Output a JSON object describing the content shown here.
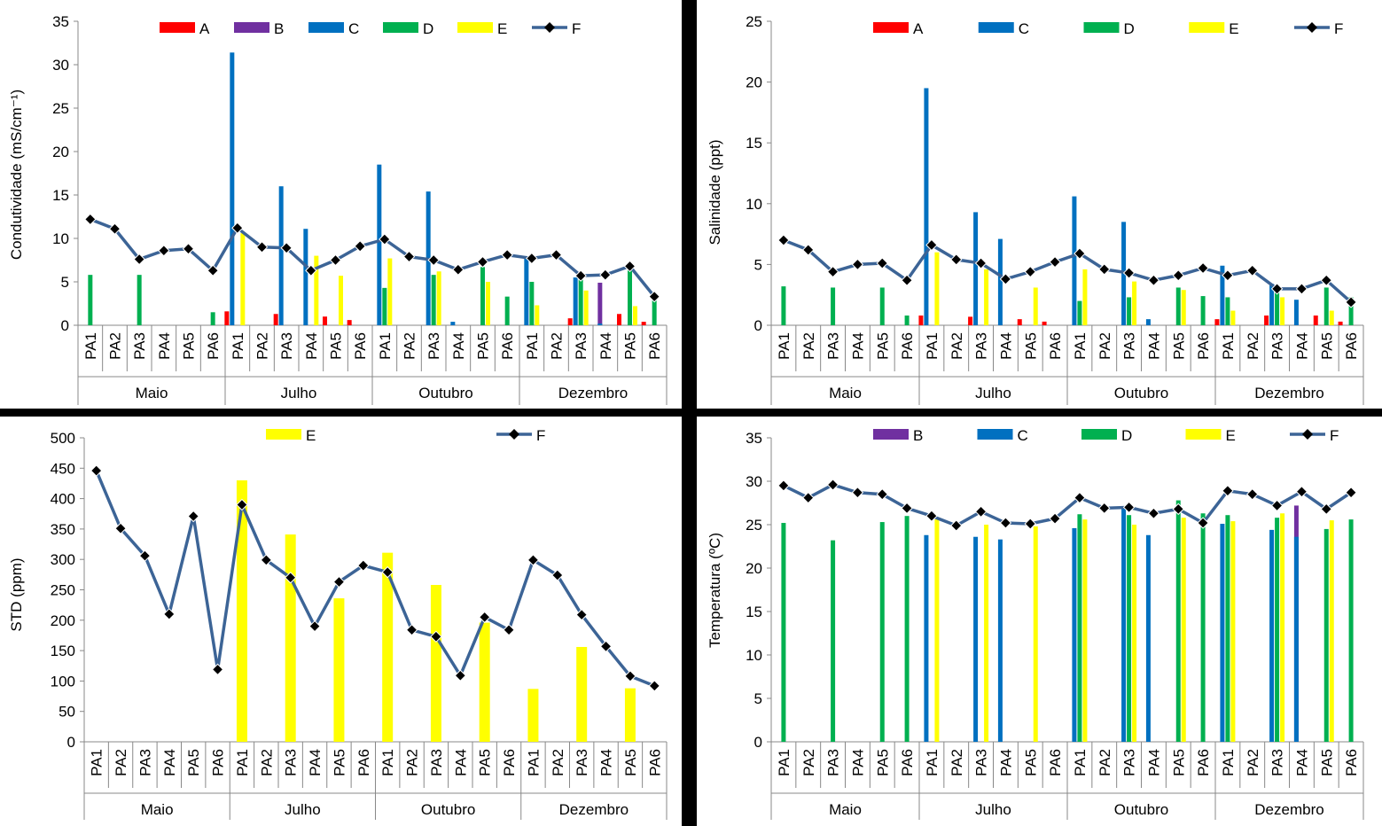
{
  "months": [
    "Maio",
    "Julho",
    "Outubro",
    "Dezembro"
  ],
  "sites": [
    "PA1",
    "PA2",
    "PA3",
    "PA4",
    "PA5",
    "PA6"
  ],
  "legend_names": {
    "A": "A",
    "B": "B",
    "C": "C",
    "D": "D",
    "E": "E",
    "F": "F"
  },
  "colors": {
    "A": "#ff0000",
    "B": "#7030a0",
    "C": "#0070c0",
    "D": "#00b050",
    "E": "#ffff00",
    "F": "#3c6496",
    "marker": "#000000"
  },
  "chart_data": [
    {
      "type": "bar",
      "title": "",
      "ylabel": "Condutividade (mS/cm⁻¹)",
      "xlabel": "",
      "ylim": [
        0,
        35
      ],
      "ytick_step": 5,
      "legend_position": "top",
      "legend": [
        "A",
        "B",
        "C",
        "D",
        "E",
        "F"
      ],
      "series": [
        {
          "name": "A",
          "kind": "bar",
          "values": [
            null,
            null,
            null,
            null,
            null,
            null,
            1.6,
            null,
            1.3,
            null,
            1.0,
            0.6,
            null,
            null,
            null,
            null,
            null,
            null,
            null,
            null,
            0.8,
            null,
            1.3,
            0.4
          ]
        },
        {
          "name": "B",
          "kind": "bar",
          "values": [
            null,
            null,
            null,
            null,
            null,
            null,
            null,
            null,
            null,
            null,
            null,
            null,
            null,
            null,
            null,
            null,
            null,
            null,
            null,
            null,
            null,
            4.9,
            null,
            null
          ]
        },
        {
          "name": "C",
          "kind": "bar",
          "values": [
            null,
            null,
            null,
            null,
            null,
            null,
            31.4,
            null,
            16.0,
            11.1,
            null,
            null,
            18.5,
            null,
            15.4,
            0.4,
            null,
            null,
            7.7,
            null,
            5.5,
            0.2,
            null,
            null
          ]
        },
        {
          "name": "D",
          "kind": "bar",
          "values": [
            5.8,
            null,
            5.8,
            null,
            null,
            1.5,
            null,
            null,
            null,
            null,
            null,
            null,
            4.3,
            null,
            5.8,
            null,
            6.7,
            3.3,
            5.0,
            null,
            5.9,
            null,
            6.5,
            3.2
          ]
        },
        {
          "name": "E",
          "kind": "bar",
          "values": [
            null,
            null,
            null,
            null,
            null,
            null,
            10.6,
            null,
            null,
            8.0,
            5.7,
            null,
            7.7,
            null,
            6.2,
            null,
            5.0,
            null,
            2.3,
            null,
            4.0,
            null,
            2.2,
            null
          ]
        },
        {
          "name": "F",
          "kind": "line",
          "values": [
            12.2,
            11.1,
            7.6,
            8.6,
            8.8,
            6.3,
            11.2,
            9.0,
            8.9,
            6.3,
            7.5,
            9.1,
            9.9,
            7.9,
            7.5,
            6.4,
            7.3,
            8.1,
            7.7,
            8.1,
            5.7,
            5.8,
            6.8,
            3.3
          ]
        }
      ]
    },
    {
      "type": "bar",
      "title": "",
      "ylabel": "Salinidade (ppt)",
      "xlabel": "",
      "ylim": [
        0,
        25
      ],
      "ytick_step": 5,
      "legend_position": "top",
      "legend": [
        "A",
        "C",
        "D",
        "E",
        "F"
      ],
      "series": [
        {
          "name": "A",
          "kind": "bar",
          "values": [
            null,
            null,
            null,
            null,
            null,
            null,
            0.8,
            null,
            0.7,
            null,
            0.5,
            0.3,
            null,
            null,
            null,
            null,
            null,
            null,
            0.5,
            null,
            0.8,
            null,
            0.8,
            0.3
          ]
        },
        {
          "name": "C",
          "kind": "bar",
          "values": [
            null,
            null,
            null,
            null,
            null,
            null,
            19.5,
            null,
            9.3,
            7.1,
            null,
            null,
            10.6,
            null,
            8.5,
            0.5,
            null,
            null,
            4.9,
            null,
            3.4,
            2.1,
            null,
            null
          ]
        },
        {
          "name": "D",
          "kind": "bar",
          "values": [
            3.2,
            null,
            3.1,
            null,
            3.1,
            0.8,
            null,
            null,
            null,
            null,
            null,
            null,
            2.0,
            null,
            2.3,
            null,
            3.1,
            2.4,
            2.3,
            null,
            3.0,
            null,
            3.1,
            2.3
          ]
        },
        {
          "name": "E",
          "kind": "bar",
          "values": [
            null,
            null,
            null,
            null,
            null,
            null,
            6.0,
            null,
            4.6,
            null,
            3.1,
            null,
            4.6,
            null,
            3.6,
            null,
            2.9,
            null,
            1.2,
            null,
            2.3,
            null,
            1.2,
            null
          ]
        },
        {
          "name": "F",
          "kind": "line",
          "values": [
            7.0,
            6.2,
            4.4,
            5.0,
            5.1,
            3.7,
            6.6,
            5.4,
            5.1,
            3.8,
            4.4,
            5.2,
            5.9,
            4.6,
            4.3,
            3.7,
            4.1,
            4.7,
            4.1,
            4.5,
            3.0,
            3.0,
            3.7,
            1.9
          ]
        }
      ]
    },
    {
      "type": "bar",
      "title": "",
      "ylabel": "STD (ppm)",
      "xlabel": "",
      "ylim": [
        0,
        500
      ],
      "ytick_step": 50,
      "legend_position": "top",
      "legend": [
        "E",
        "F"
      ],
      "series": [
        {
          "name": "E",
          "kind": "bar",
          "values": [
            null,
            null,
            null,
            null,
            null,
            null,
            430,
            null,
            341,
            null,
            236,
            null,
            311,
            null,
            258,
            null,
            196,
            null,
            87,
            null,
            156,
            null,
            88,
            null
          ]
        },
        {
          "name": "F",
          "kind": "line",
          "values": [
            446,
            351,
            306,
            210,
            371,
            119,
            390,
            299,
            270,
            190,
            263,
            290,
            279,
            184,
            173,
            109,
            205,
            184,
            299,
            274,
            209,
            157,
            108,
            92
          ]
        }
      ]
    },
    {
      "type": "bar",
      "title": "",
      "ylabel": "Temperatura (ºC)",
      "xlabel": "",
      "ylim": [
        0,
        35
      ],
      "ytick_step": 5,
      "legend_position": "top",
      "legend": [
        "B",
        "C",
        "D",
        "E",
        "F"
      ],
      "series": [
        {
          "name": "B",
          "kind": "bar",
          "values": [
            null,
            null,
            null,
            null,
            null,
            null,
            null,
            null,
            null,
            null,
            null,
            null,
            null,
            null,
            null,
            null,
            null,
            null,
            null,
            null,
            null,
            27.2,
            null,
            null
          ]
        },
        {
          "name": "C",
          "kind": "bar",
          "values": [
            null,
            null,
            null,
            null,
            null,
            null,
            23.8,
            null,
            23.6,
            23.3,
            null,
            null,
            24.6,
            null,
            26.9,
            23.8,
            null,
            null,
            25.1,
            null,
            24.4,
            23.6,
            null,
            null
          ]
        },
        {
          "name": "D",
          "kind": "bar",
          "values": [
            25.2,
            null,
            23.2,
            null,
            25.3,
            26.0,
            null,
            null,
            null,
            null,
            null,
            null,
            26.2,
            null,
            26.1,
            null,
            27.8,
            26.3,
            26.1,
            null,
            25.8,
            null,
            24.5,
            25.6
          ]
        },
        {
          "name": "E",
          "kind": "bar",
          "values": [
            null,
            null,
            null,
            null,
            null,
            null,
            25.6,
            null,
            25.0,
            null,
            24.8,
            null,
            25.6,
            null,
            25.0,
            null,
            25.8,
            null,
            25.4,
            null,
            26.3,
            null,
            25.5,
            null
          ]
        },
        {
          "name": "F",
          "kind": "line",
          "values": [
            29.5,
            28.1,
            29.6,
            28.7,
            28.5,
            26.9,
            26.0,
            24.9,
            26.5,
            25.2,
            25.1,
            25.7,
            28.1,
            26.9,
            27.0,
            26.3,
            26.8,
            25.2,
            28.9,
            28.5,
            27.2,
            28.8,
            26.8,
            28.7
          ]
        }
      ]
    }
  ]
}
